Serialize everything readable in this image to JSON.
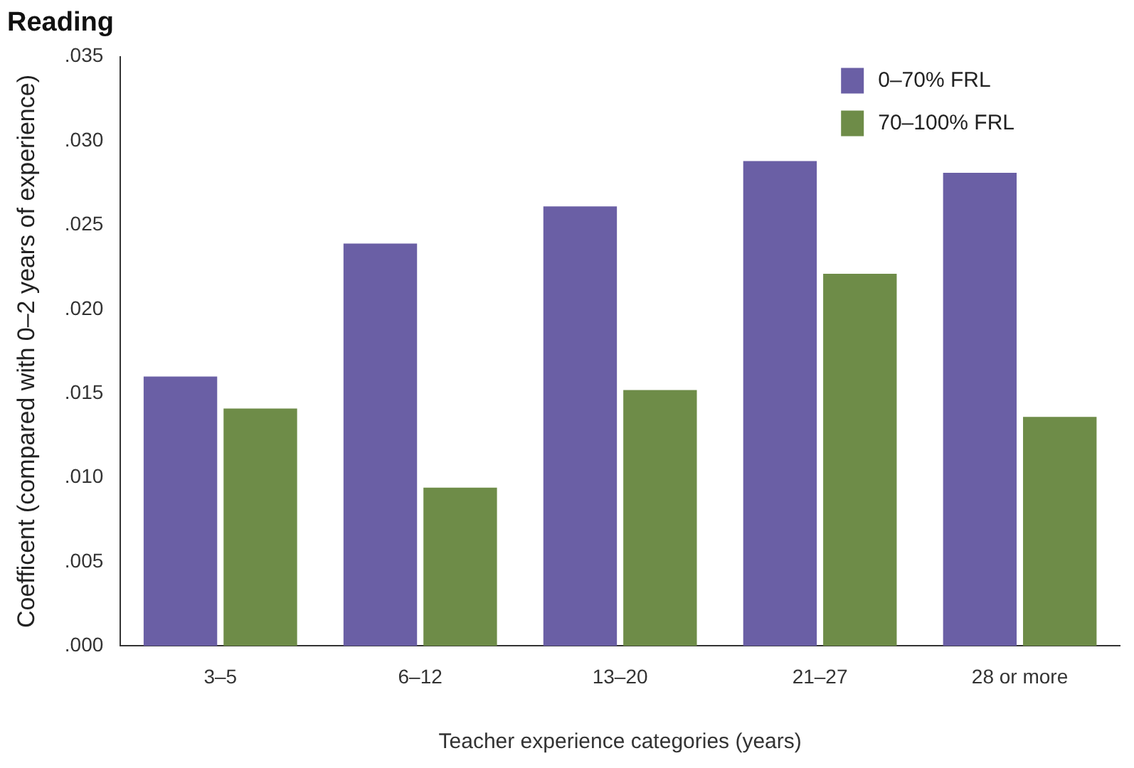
{
  "chart_data": {
    "type": "bar",
    "title": "Reading",
    "xlabel": "Teacher experience categories (years)",
    "ylabel": "Coefficent (compared with 0–2 years of experience)",
    "categories": [
      "3–5",
      "6–12",
      "13–20",
      "21–27",
      "28 or more"
    ],
    "series": [
      {
        "name": "0–70% FRL",
        "color": "#6a5fa5",
        "values": [
          0.016,
          0.0239,
          0.0261,
          0.0288,
          0.0281
        ]
      },
      {
        "name": "70–100% FRL",
        "color": "#6e8c48",
        "values": [
          0.0141,
          0.0094,
          0.0152,
          0.0221,
          0.0136
        ]
      }
    ],
    "ylim": [
      0,
      0.035
    ],
    "yticks": [
      {
        "value": 0,
        "label": ".000"
      },
      {
        "value": 0.005,
        "label": ".005"
      },
      {
        "value": 0.01,
        "label": ".010"
      },
      {
        "value": 0.015,
        "label": ".015"
      },
      {
        "value": 0.02,
        "label": ".020"
      },
      {
        "value": 0.025,
        "label": ".025"
      },
      {
        "value": 0.03,
        "label": ".030"
      },
      {
        "value": 0.035,
        "label": ".035"
      }
    ],
    "grid": false,
    "legend": "top right"
  }
}
